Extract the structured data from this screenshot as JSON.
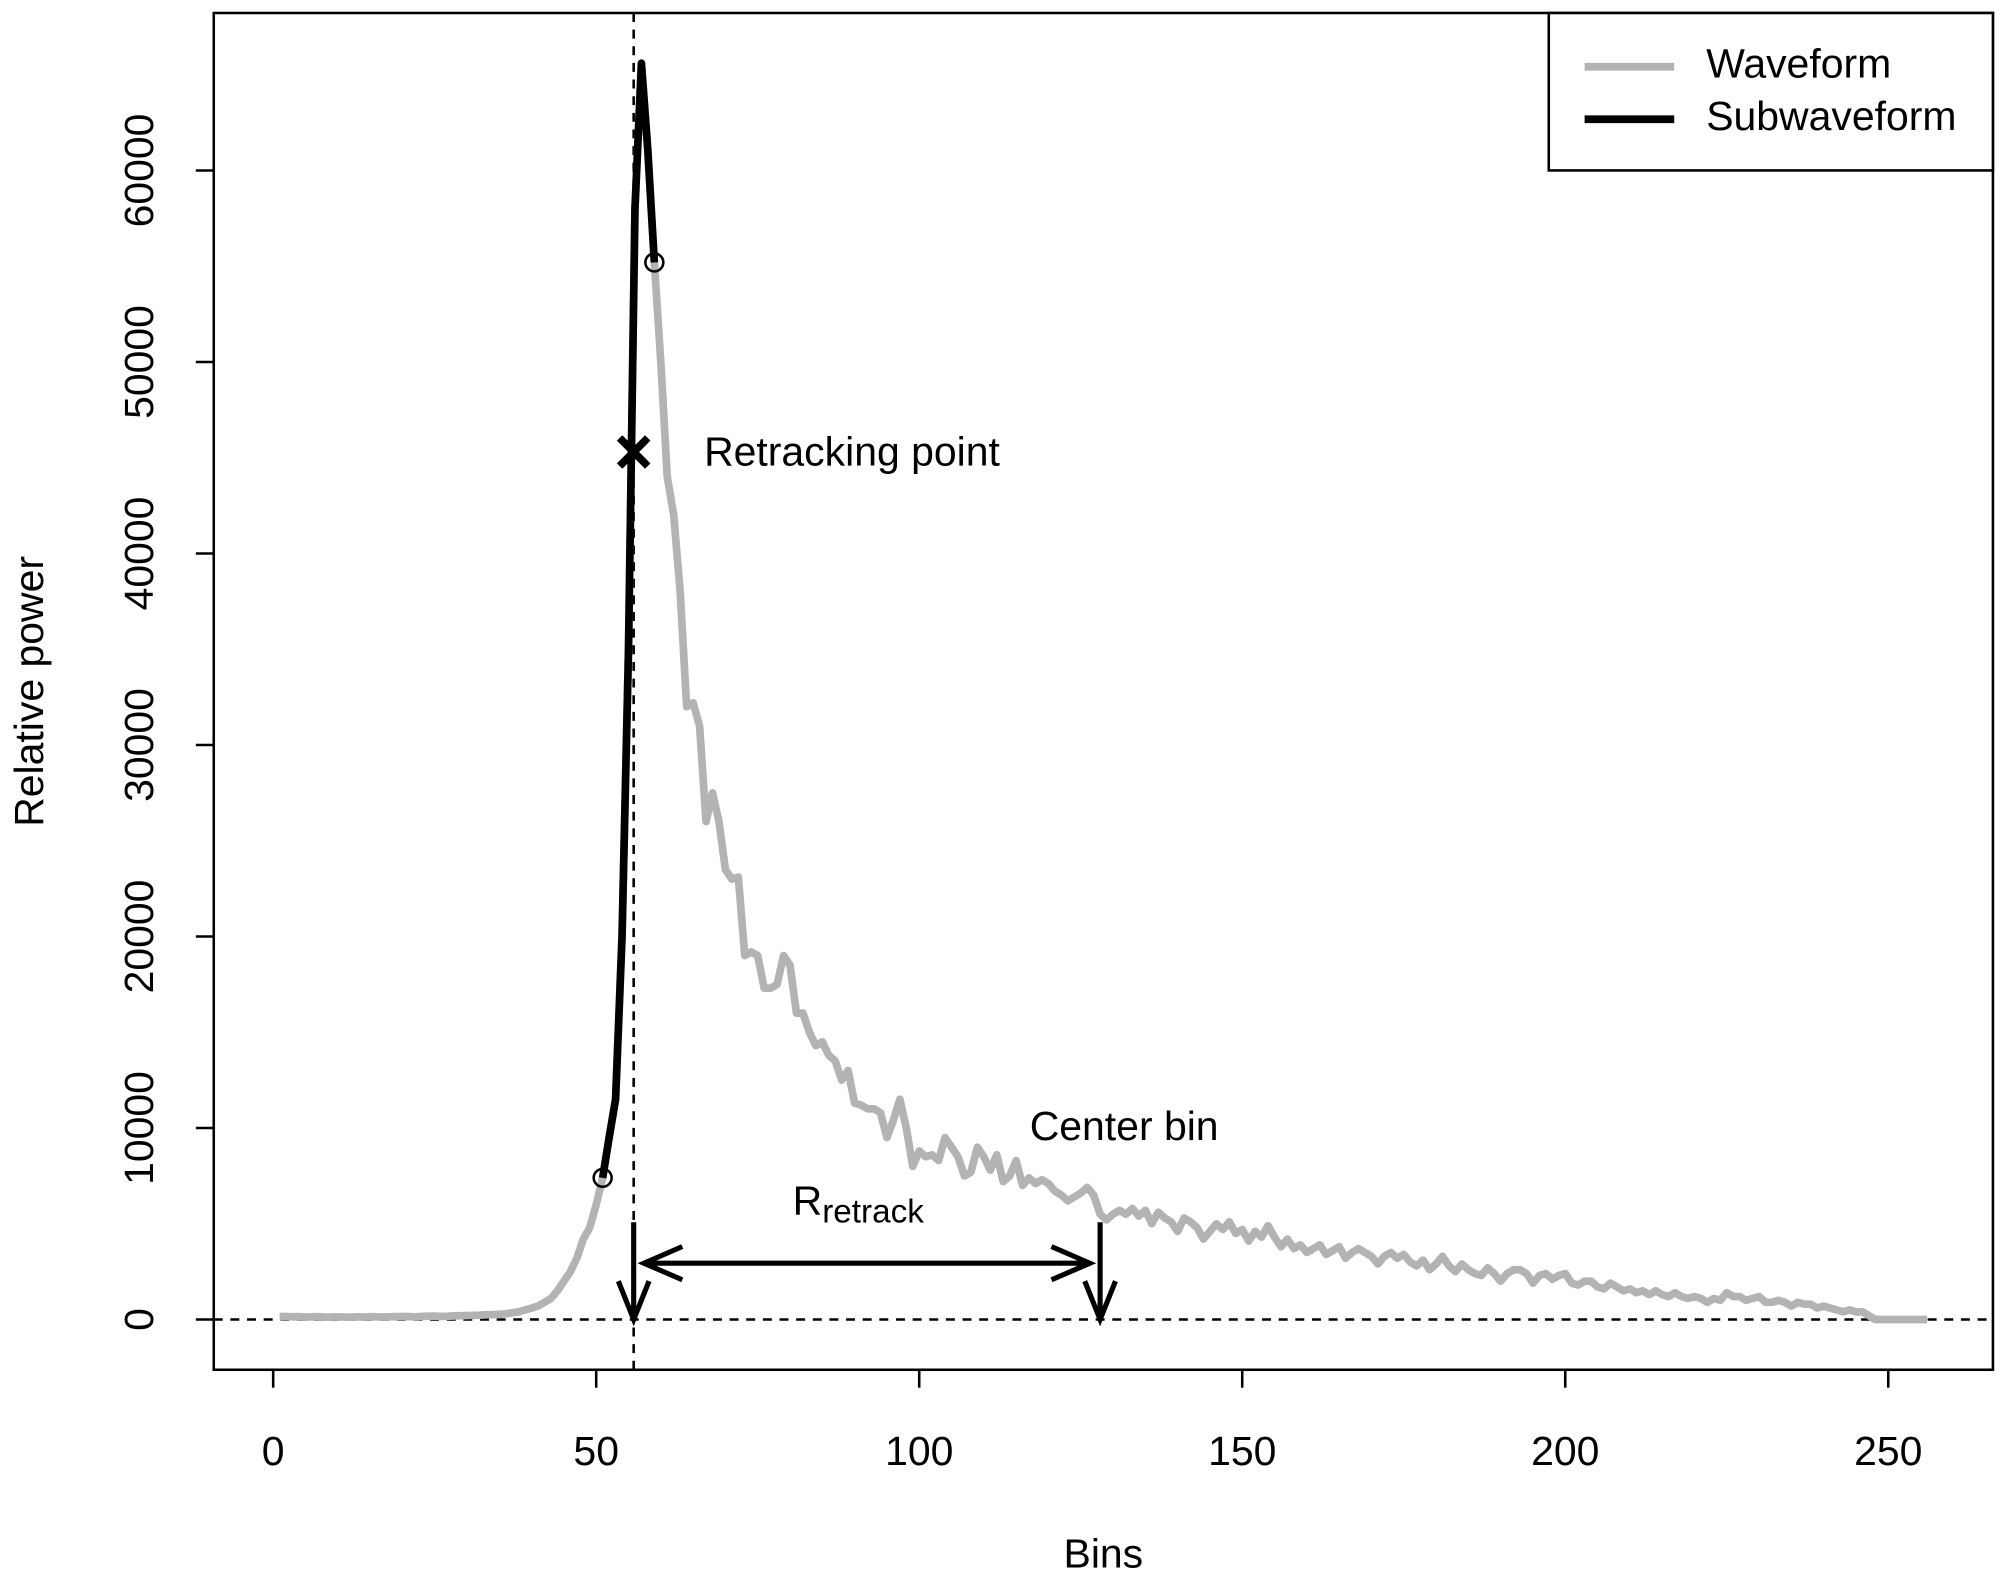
{
  "chart_data": {
    "type": "line",
    "x_label": "Bins",
    "y_label": "Relative power",
    "xlim": [
      -9.2,
      266.2
    ],
    "xticks": [
      0,
      50,
      100,
      150,
      200,
      250
    ],
    "ylim": [
      -2624,
      68224
    ],
    "yticks": [
      0,
      10000,
      20000,
      30000,
      40000,
      50000,
      60000
    ],
    "legend": "top-right",
    "series": [
      {
        "name": "Waveform",
        "color": "#b3b3b3",
        "x": [
          1,
          2,
          3,
          4,
          5,
          6,
          7,
          8,
          9,
          10,
          11,
          12,
          13,
          14,
          15,
          16,
          17,
          18,
          19,
          20,
          21,
          22,
          23,
          24,
          25,
          26,
          27,
          28,
          29,
          30,
          31,
          32,
          33,
          34,
          35,
          36,
          37,
          38,
          39,
          40,
          41,
          42,
          43,
          44,
          45,
          46,
          47,
          48,
          49,
          50,
          51,
          52,
          53,
          54,
          55,
          56,
          57,
          58,
          59,
          60,
          61,
          62,
          63,
          64,
          65,
          66,
          67,
          68,
          69,
          70,
          71,
          72,
          73,
          74,
          75,
          76,
          77,
          78,
          79,
          80,
          81,
          82,
          83,
          84,
          85,
          86,
          87,
          88,
          89,
          90,
          91,
          92,
          93,
          94,
          95,
          96,
          97,
          98,
          99,
          100,
          101,
          102,
          103,
          104,
          105,
          106,
          107,
          108,
          109,
          110,
          111,
          112,
          113,
          114,
          115,
          116,
          117,
          118,
          119,
          120,
          121,
          122,
          123,
          124,
          125,
          126,
          127,
          128,
          129,
          130,
          131,
          132,
          133,
          134,
          135,
          136,
          137,
          138,
          139,
          140,
          141,
          142,
          143,
          144,
          145,
          146,
          147,
          148,
          149,
          150,
          151,
          152,
          153,
          154,
          155,
          156,
          157,
          158,
          159,
          160,
          161,
          162,
          163,
          164,
          165,
          166,
          167,
          168,
          169,
          170,
          171,
          172,
          173,
          174,
          175,
          176,
          177,
          178,
          179,
          180,
          181,
          182,
          183,
          184,
          185,
          186,
          187,
          188,
          189,
          190,
          191,
          192,
          193,
          194,
          195,
          196,
          197,
          198,
          199,
          200,
          201,
          202,
          203,
          204,
          205,
          206,
          207,
          208,
          209,
          210,
          211,
          212,
          213,
          214,
          215,
          216,
          217,
          218,
          219,
          220,
          221,
          222,
          223,
          224,
          225,
          226,
          227,
          228,
          229,
          230,
          231,
          232,
          233,
          234,
          235,
          236,
          237,
          238,
          239,
          240,
          241,
          242,
          243,
          244,
          245,
          246,
          247,
          248,
          249,
          250,
          251,
          252,
          253,
          254,
          255,
          256
        ],
        "values": [
          150,
          160,
          140,
          150,
          130,
          140,
          150,
          120,
          130,
          140,
          130,
          120,
          140,
          130,
          150,
          140,
          130,
          140,
          150,
          160,
          150,
          140,
          160,
          170,
          180,
          160,
          170,
          190,
          200,
          210,
          220,
          230,
          250,
          260,
          280,
          300,
          350,
          400,
          500,
          600,
          700,
          900,
          1100,
          1500,
          2000,
          2500,
          3200,
          4200,
          4800,
          6000,
          7400,
          9500,
          11500,
          20000,
          35000,
          58000,
          65600,
          61000,
          55200,
          50000,
          44000,
          42000,
          38000,
          32000,
          32200,
          31000,
          26000,
          27500,
          26000,
          23500,
          23000,
          23100,
          19000,
          19200,
          19000,
          17300,
          17300,
          17500,
          19000,
          18500,
          16000,
          16000,
          15000,
          14300,
          14500,
          13800,
          13500,
          12500,
          13000,
          11300,
          11200,
          11000,
          11000,
          10800,
          9500,
          10400,
          11500,
          10000,
          8000,
          8800,
          8500,
          8600,
          8300,
          9500,
          9000,
          8500,
          7500,
          7700,
          9000,
          8500,
          7800,
          8600,
          7200,
          7500,
          8300,
          7000,
          7400,
          7100,
          7300,
          7100,
          6700,
          6500,
          6200,
          6400,
          6600,
          6900,
          6500,
          5500,
          5200,
          5500,
          5700,
          5500,
          5800,
          5400,
          5700,
          5000,
          5600,
          5300,
          5100,
          4600,
          5300,
          5100,
          4800,
          4200,
          4600,
          5000,
          4700,
          5100,
          4500,
          4700,
          4100,
          4600,
          4300,
          4900,
          4300,
          3800,
          4200,
          3700,
          3900,
          3500,
          3700,
          3900,
          3400,
          3600,
          3800,
          3200,
          3500,
          3700,
          3500,
          3300,
          2900,
          3300,
          3500,
          3200,
          3400,
          3000,
          2800,
          3100,
          2600,
          2900,
          3300,
          2800,
          2500,
          2900,
          2600,
          2400,
          2300,
          2700,
          2400,
          2000,
          2400,
          2600,
          2600,
          2400,
          1900,
          2300,
          2400,
          2100,
          2300,
          2400,
          1900,
          1800,
          2000,
          2000,
          1700,
          1600,
          1900,
          1700,
          1500,
          1600,
          1400,
          1500,
          1300,
          1500,
          1300,
          1200,
          1400,
          1200,
          1100,
          1200,
          1100,
          900,
          1100,
          1000,
          1400,
          1200,
          1200,
          1000,
          1100,
          1200,
          900,
          900,
          1000,
          900,
          700,
          900,
          800,
          800,
          600,
          700,
          600,
          500,
          400,
          500,
          400,
          400,
          200,
          0,
          0,
          0,
          0,
          0,
          0,
          0,
          0,
          0
        ]
      },
      {
        "name": "Subwaveform",
        "color": "#000000",
        "x": [
          51,
          52,
          53,
          54,
          55,
          56,
          57,
          58,
          59
        ],
        "values": [
          7400,
          9500,
          11500,
          20000,
          35000,
          58000,
          65600,
          61000,
          55200
        ]
      }
    ],
    "retracking_point": {
      "label": "Retracking point",
      "x": 55.8,
      "y": 45300
    },
    "center_bin": {
      "label": "Center bin",
      "x": 128
    },
    "range_label": {
      "text": "R",
      "subscript": "retrack"
    }
  }
}
